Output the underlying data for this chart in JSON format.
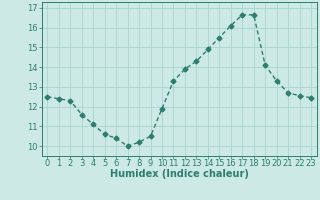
{
  "x": [
    0,
    1,
    2,
    3,
    4,
    5,
    6,
    7,
    8,
    9,
    10,
    11,
    12,
    13,
    14,
    15,
    16,
    17,
    18,
    19,
    20,
    21,
    22,
    23
  ],
  "y": [
    12.5,
    12.4,
    12.3,
    11.6,
    11.1,
    10.6,
    10.4,
    10.0,
    10.2,
    10.5,
    11.9,
    13.3,
    13.9,
    14.3,
    14.9,
    15.5,
    16.1,
    16.65,
    16.65,
    14.1,
    13.3,
    12.7,
    12.55,
    12.45
  ],
  "line_color": "#2e7d6e",
  "marker": "D",
  "marker_size": 2.5,
  "bg_color": "#cce9e5",
  "grid_color": "#aad4cf",
  "xlabel": "Humidex (Indice chaleur)",
  "xlabel_fontsize": 7,
  "tick_fontsize": 6,
  "xlim": [
    -0.5,
    23.5
  ],
  "ylim": [
    9.5,
    17.3
  ],
  "yticks": [
    10,
    11,
    12,
    13,
    14,
    15,
    16,
    17
  ],
  "xticks": [
    0,
    1,
    2,
    3,
    4,
    5,
    6,
    7,
    8,
    9,
    10,
    11,
    12,
    13,
    14,
    15,
    16,
    17,
    18,
    19,
    20,
    21,
    22,
    23
  ],
  "line_width": 1.0
}
